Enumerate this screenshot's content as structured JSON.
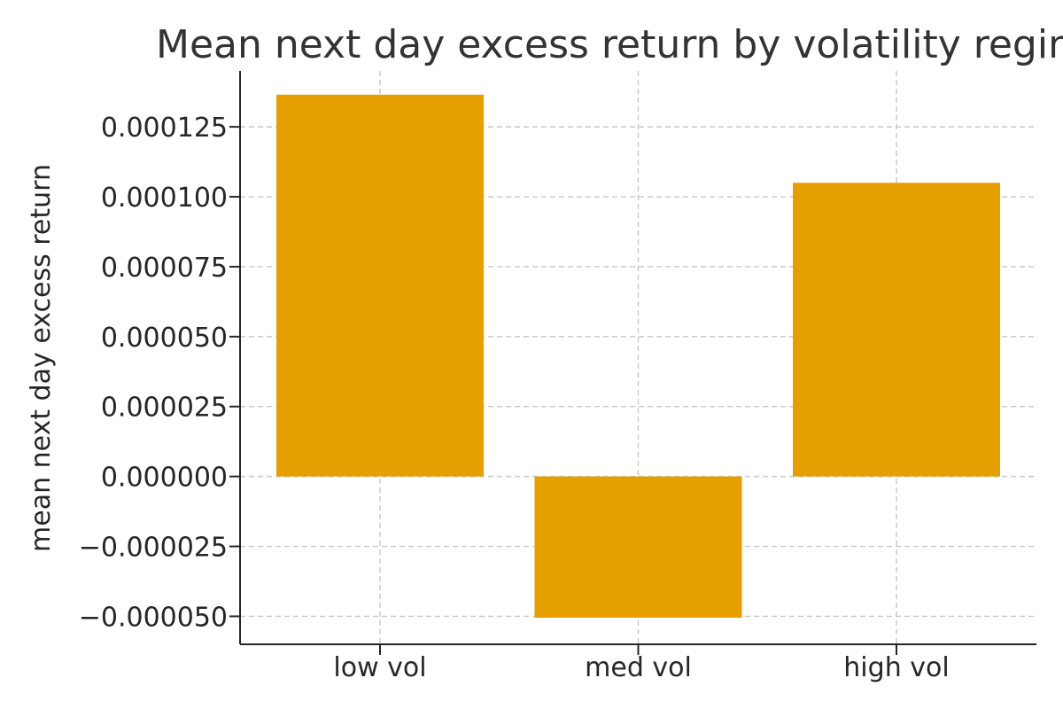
{
  "chart_data": {
    "type": "bar",
    "title": "Mean next day excess return by volatility regime",
    "xlabel": "",
    "ylabel": "mean next day excess return",
    "categories": [
      "low vol",
      "med vol",
      "high vol"
    ],
    "values": [
      0.0001365,
      -5.05e-05,
      0.000105
    ],
    "ylim": [
      -6e-05,
      0.000145
    ],
    "yticks": [
      -5e-05,
      -2.5e-05,
      0,
      2.5e-05,
      5e-05,
      7.5e-05,
      0.0001,
      0.000125
    ],
    "ytick_labels": [
      "−0.000050",
      "−0.000025",
      "0.000000",
      "0.000025",
      "0.000050",
      "0.000075",
      "0.000100",
      "0.000125"
    ],
    "grid": true,
    "bar_color": "#e5a000"
  }
}
